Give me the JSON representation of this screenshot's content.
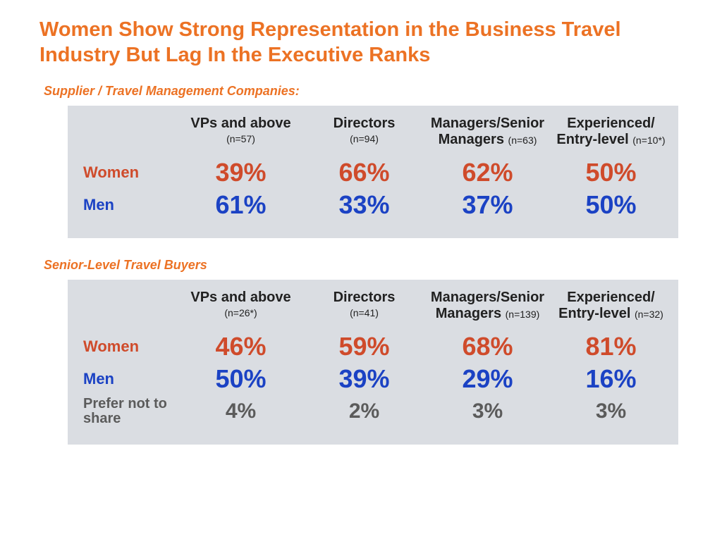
{
  "title": "Women Show Strong Representation in the Business Travel Industry But Lag In the Executive Ranks",
  "colors": {
    "accent_orange": "#ec7224",
    "women_red": "#cf4b2b",
    "men_blue": "#1b42c4",
    "neutral_grey": "#5b5b5b",
    "panel_bg": "#dadde2",
    "page_bg": "#ffffff",
    "header_text": "#212121"
  },
  "typography": {
    "title_fontsize": 29,
    "section_label_fontsize": 18,
    "col_header_fontsize": 20,
    "nsize_fontsize": 14,
    "row_label_fontsize": 22,
    "value_fontsize": 36,
    "pns_label_fontsize": 20,
    "pns_value_fontsize": 30,
    "font_family": "Arial"
  },
  "section1": {
    "label": "Supplier / Travel Management Companies:",
    "columns": [
      {
        "title": "VPs and above",
        "n": "(n=57)",
        "n_inline": false
      },
      {
        "title": "Directors",
        "n": "(n=94)",
        "n_inline": false
      },
      {
        "title": "Managers/Senior Managers",
        "n": "(n=63)",
        "n_inline": true
      },
      {
        "title": "Experienced/ Entry-level",
        "n": "(n=10*)",
        "n_inline": true
      }
    ],
    "rows": {
      "women": {
        "label": "Women",
        "values": [
          "39%",
          "66%",
          "62%",
          "50%"
        ]
      },
      "men": {
        "label": "Men",
        "values": [
          "61%",
          "33%",
          "37%",
          "50%"
        ]
      }
    }
  },
  "section2": {
    "label": "Senior-Level Travel Buyers",
    "columns": [
      {
        "title": "VPs and above",
        "n": "(n=26*)",
        "n_inline": false
      },
      {
        "title": "Directors",
        "n": "(n=41)",
        "n_inline": false
      },
      {
        "title": "Managers/Senior Managers",
        "n": "(n=139)",
        "n_inline": true
      },
      {
        "title": "Experienced/ Entry-level",
        "n": "(n=32)",
        "n_inline": true
      }
    ],
    "rows": {
      "women": {
        "label": "Women",
        "values": [
          "46%",
          "59%",
          "68%",
          "81%"
        ]
      },
      "men": {
        "label": "Men",
        "values": [
          "50%",
          "39%",
          "29%",
          "16%"
        ]
      },
      "pns": {
        "label": "Prefer not to share",
        "values": [
          "4%",
          "2%",
          "3%",
          "3%"
        ]
      }
    }
  }
}
